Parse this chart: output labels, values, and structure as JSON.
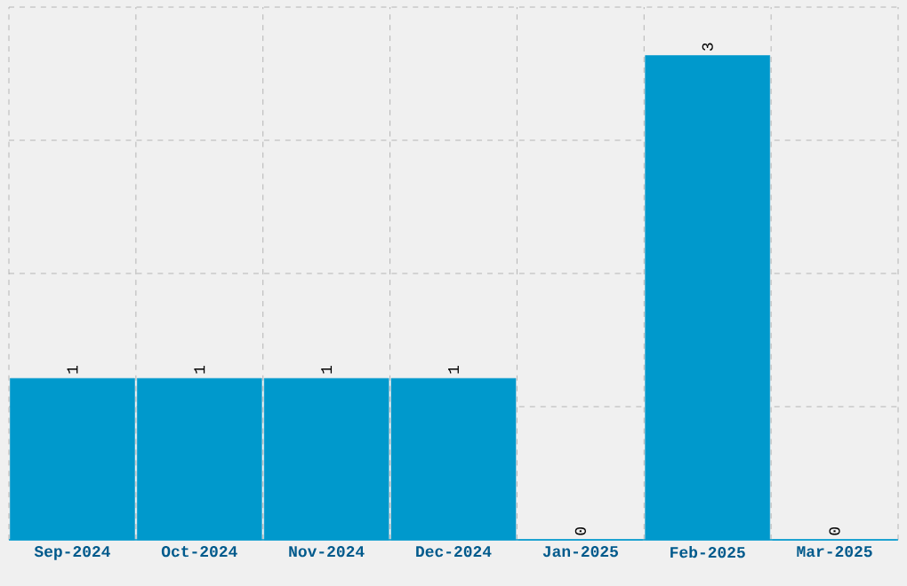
{
  "chart_data": {
    "type": "bar",
    "categories": [
      "Sep-2024",
      "Oct-2024",
      "Nov-2024",
      "Dec-2024",
      "Jan-2025",
      "Feb-2025",
      "Mar-2025"
    ],
    "values": [
      1,
      1,
      1,
      1,
      0,
      3,
      0
    ],
    "color": "#0099cc",
    "ylim": [
      0,
      3.3
    ],
    "yticks": [
      {
        "value": 0.825,
        "label": null
      },
      {
        "value": 1.65,
        "label": null
      },
      {
        "value": 2.475,
        "label": null
      },
      {
        "value": 3.3,
        "label": null
      }
    ],
    "grid": true,
    "data_labels": true
  }
}
